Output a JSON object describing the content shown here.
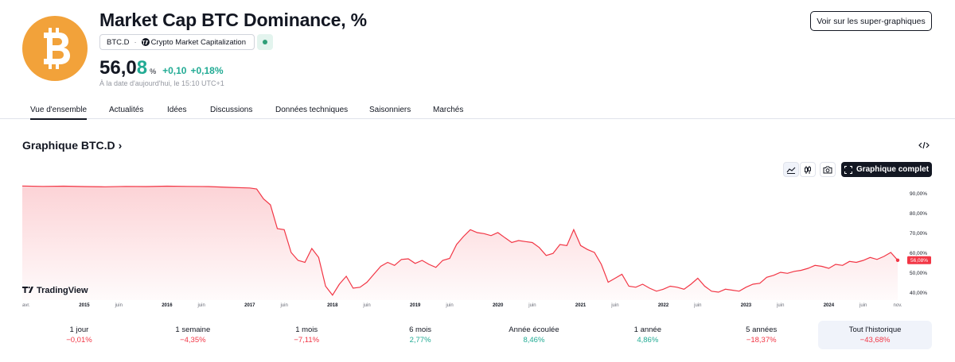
{
  "header": {
    "title": "Market Cap BTC Dominance, %",
    "super_charts_label": "Voir sur les super-graphiques",
    "ticker": "BTC.D",
    "ticker_separator": "·",
    "source": "Crypto Market Capitalization",
    "price_main": "56,0",
    "price_last_digit": "8",
    "price_unit": "%",
    "change": "+0,10",
    "change_percent": "+0,18%",
    "as_of": "À la date d'aujourd'hui, le 15:10 UTC+1",
    "logo_icon": "bitcoin-icon",
    "accent_color": "#f2a23a",
    "positive_color": "#22ab94",
    "negative_color": "#f23645"
  },
  "tabs": [
    {
      "label": "Vue d'ensemble",
      "active": true
    },
    {
      "label": "Actualités"
    },
    {
      "label": "Idées"
    },
    {
      "label": "Discussions"
    },
    {
      "label": "Données techniques"
    },
    {
      "label": "Saisonniers"
    },
    {
      "label": "Marchés"
    }
  ],
  "chart_section": {
    "title": "Graphique BTC.D",
    "title_chevron": "›",
    "full_chart_label": "Graphique complet",
    "watermark": "TradingView",
    "tools": [
      "area-chart-icon",
      "candles-icon",
      "camera-icon"
    ]
  },
  "chart_data": {
    "type": "area",
    "series": [
      {
        "x": [
          "2014-04",
          "2014-07",
          "2014-10",
          "2015-01",
          "2015-04",
          "2015-07",
          "2015-10",
          "2016-01",
          "2016-04",
          "2016-07",
          "2016-10",
          "2017-01",
          "2017-02",
          "2017-03",
          "2017-04",
          "2017-05",
          "2017-06",
          "2017-07",
          "2017-08",
          "2017-09",
          "2017-10",
          "2017-11",
          "2017-12",
          "2018-01",
          "2018-02",
          "2018-03",
          "2018-04",
          "2018-05",
          "2018-06",
          "2018-07",
          "2018-08",
          "2018-09",
          "2018-10",
          "2018-11",
          "2018-12",
          "2019-01",
          "2019-02",
          "2019-03",
          "2019-04",
          "2019-05",
          "2019-06",
          "2019-07",
          "2019-08",
          "2019-09",
          "2019-10",
          "2019-11",
          "2019-12",
          "2020-01",
          "2020-02",
          "2020-03",
          "2020-04",
          "2020-05",
          "2020-06",
          "2020-07",
          "2020-08",
          "2020-09",
          "2020-10",
          "2020-11",
          "2020-12",
          "2021-01",
          "2021-02",
          "2021-03",
          "2021-04",
          "2021-05",
          "2021-06",
          "2021-07",
          "2021-08",
          "2021-09",
          "2021-10",
          "2021-11",
          "2021-12",
          "2022-01",
          "2022-02",
          "2022-03",
          "2022-04",
          "2022-05",
          "2022-06",
          "2022-07",
          "2022-08",
          "2022-09",
          "2022-10",
          "2022-11",
          "2022-12",
          "2023-01",
          "2023-02",
          "2023-03",
          "2023-04",
          "2023-05",
          "2023-06",
          "2023-07",
          "2023-08",
          "2023-09",
          "2023-10",
          "2023-11",
          "2023-12",
          "2024-01",
          "2024-02",
          "2024-03",
          "2024-04",
          "2024-05",
          "2024-06",
          "2024-07",
          "2024-08",
          "2024-09",
          "2024-10",
          "2024-11"
        ],
        "values": [
          93.5,
          93.3,
          93.4,
          93.2,
          93.1,
          93.3,
          93.2,
          93.4,
          93.3,
          93.2,
          92.8,
          92.5,
          92.0,
          87.0,
          84.0,
          72.0,
          71.5,
          60.0,
          56.0,
          55.0,
          62.0,
          57.5,
          43.0,
          38.5,
          44.0,
          48.0,
          42.0,
          42.5,
          45.0,
          49.0,
          53.0,
          55.0,
          53.5,
          56.5,
          56.8,
          54.5,
          56.0,
          54.0,
          52.5,
          56.0,
          57.0,
          64.0,
          68.0,
          71.5,
          70.0,
          69.5,
          68.5,
          70.0,
          67.5,
          65.0,
          66.0,
          65.5,
          65.0,
          62.5,
          58.5,
          59.5,
          64.0,
          63.5,
          71.5,
          63.5,
          61.5,
          60.0,
          54.0,
          45.0,
          47.0,
          49.0,
          43.0,
          42.5,
          44.0,
          42.0,
          40.5,
          41.5,
          43.0,
          42.5,
          41.5,
          44.0,
          47.0,
          43.0,
          40.5,
          40.0,
          41.5,
          41.0,
          40.5,
          42.5,
          44.0,
          44.5,
          47.5,
          48.5,
          50.0,
          49.5,
          50.5,
          51.0,
          52.0,
          53.5,
          53.0,
          52.0,
          54.0,
          53.5,
          55.5,
          55.0,
          56.0,
          57.5,
          56.5,
          58.0,
          60.0,
          56.08
        ]
      }
    ],
    "x_tick_labels": [
      "avr.",
      "2015",
      "juin",
      "2016",
      "juin",
      "2017",
      "juin",
      "2018",
      "juin",
      "2019",
      "juin",
      "2020",
      "juin",
      "2021",
      "juin",
      "2022",
      "juin",
      "2023",
      "juin",
      "2024",
      "juin",
      "nov."
    ],
    "y_tick_labels": [
      "90,00%",
      "80,00%",
      "70,00%",
      "60,00%",
      "50,00%",
      "40,00%"
    ],
    "last_value_label": "56,08%",
    "ylim": [
      36,
      96
    ],
    "line_color": "#f23645",
    "grid": false
  },
  "periods": [
    {
      "label": "1 jour",
      "value": "−0,01%",
      "sign": "neg"
    },
    {
      "label": "1 semaine",
      "value": "−4,35%",
      "sign": "neg"
    },
    {
      "label": "1 mois",
      "value": "−7,11%",
      "sign": "neg"
    },
    {
      "label": "6 mois",
      "value": "2,77%",
      "sign": "pos"
    },
    {
      "label": "Année écoulée",
      "value": "8,46%",
      "sign": "pos"
    },
    {
      "label": "1 année",
      "value": "4,86%",
      "sign": "pos"
    },
    {
      "label": "5 années",
      "value": "−18,37%",
      "sign": "neg"
    },
    {
      "label": "Tout l'historique",
      "value": "−43,68%",
      "sign": "neg",
      "selected": true
    }
  ]
}
